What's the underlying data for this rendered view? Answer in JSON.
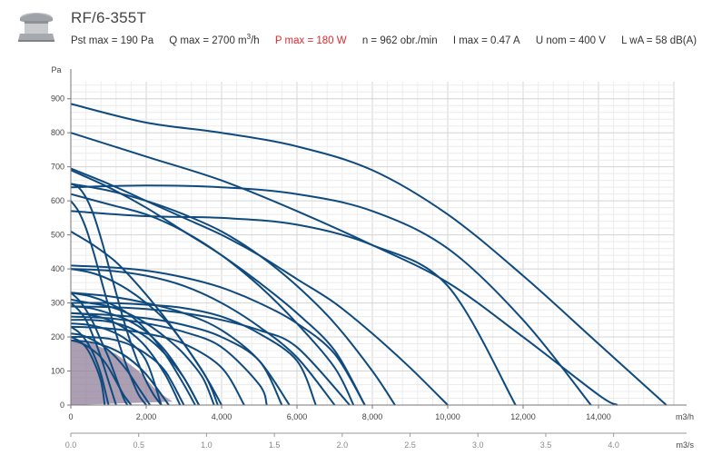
{
  "header": {
    "title": "RF/6-355T",
    "specs": {
      "pst": "Pst max = 190 Pa",
      "q_prefix": "Q max = 2700 m",
      "q_sup": "3",
      "q_suffix": "/h",
      "p": "P max = 180 W",
      "n": "n = 962 obr./min",
      "i": "I max = 0.47 A",
      "u": "U nom = 400 V",
      "lwa": "L wA = 58 dB(A)"
    },
    "colors": {
      "highlight": "#e0282d",
      "curve": "#0f4a7e",
      "area": "#8e7a95"
    }
  },
  "chart_data": {
    "type": "line",
    "ylabel": "Pa",
    "xlabel": "m3/h",
    "x2label": "m3/s",
    "ylim": [
      0,
      950
    ],
    "xlim": [
      0,
      16000
    ],
    "x2lim": [
      0,
      4.444
    ],
    "yticks": [
      0,
      100,
      200,
      300,
      400,
      500,
      600,
      700,
      800,
      900
    ],
    "xticks": [
      0,
      2000,
      4000,
      6000,
      8000,
      10000,
      12000,
      14000
    ],
    "xtick_labels": [
      "0",
      "2,000",
      "4,000",
      "6,000",
      "8,000",
      "10,000",
      "12,000",
      "14,000"
    ],
    "x2ticks": [
      0,
      0.5,
      1,
      1.5,
      2,
      2.5,
      3,
      3.5,
      4
    ],
    "x2tick_labels": [
      "0.0",
      "0.5",
      "1.0",
      "1.5",
      "2.0",
      "2.5",
      "3.0",
      "3.5",
      "4.0"
    ],
    "grid": true,
    "highlighted_area": {
      "x": [
        0,
        600,
        1200,
        1800,
        2300,
        2700,
        0
      ],
      "y": [
        190,
        180,
        150,
        100,
        40,
        10,
        0
      ]
    },
    "series": [
      {
        "x": [
          0,
          2000,
          4000,
          6000,
          8000,
          10000,
          12000,
          14000,
          15800
        ],
        "y": [
          885,
          830,
          800,
          760,
          690,
          560,
          380,
          180,
          0
        ]
      },
      {
        "x": [
          0,
          2000,
          4000,
          6000,
          8000,
          10000,
          12000,
          14000,
          14500
        ],
        "y": [
          800,
          730,
          660,
          570,
          470,
          360,
          200,
          30,
          0
        ]
      },
      {
        "x": [
          0,
          2000,
          4000,
          6000,
          8000,
          10000,
          12000,
          13800
        ],
        "y": [
          640,
          645,
          640,
          620,
          570,
          460,
          250,
          0
        ]
      },
      {
        "x": [
          0,
          2000,
          4000,
          6000,
          8000,
          10000,
          11800
        ],
        "y": [
          570,
          555,
          550,
          530,
          470,
          350,
          0
        ]
      },
      {
        "x": [
          0,
          1000,
          2000,
          3000,
          4000,
          5000,
          6000,
          7000,
          8000,
          9000,
          10000
        ],
        "y": [
          695,
          650,
          600,
          550,
          500,
          440,
          370,
          300,
          210,
          110,
          0
        ]
      },
      {
        "x": [
          0,
          1000,
          2000,
          3000,
          4000,
          5000,
          6000,
          7000,
          8000,
          8600
        ],
        "y": [
          650,
          630,
          600,
          560,
          510,
          440,
          350,
          240,
          100,
          0
        ]
      },
      {
        "x": [
          0,
          1000,
          2000,
          3000,
          4000,
          5000,
          6000,
          7000,
          7800
        ],
        "y": [
          690,
          640,
          580,
          510,
          440,
          360,
          270,
          160,
          0
        ]
      },
      {
        "x": [
          0,
          1000,
          2000,
          3000,
          4000,
          5000,
          6000,
          7000,
          7500
        ],
        "y": [
          620,
          590,
          560,
          510,
          440,
          350,
          240,
          110,
          0
        ]
      },
      {
        "x": [
          0,
          1000,
          2000,
          3000,
          4000,
          5000,
          6000,
          7000,
          7800
        ],
        "y": [
          410,
          405,
          395,
          375,
          345,
          300,
          240,
          150,
          0
        ]
      },
      {
        "x": [
          0,
          1000,
          2000,
          3000,
          4000,
          5000,
          6000,
          7000
        ],
        "y": [
          400,
          395,
          380,
          350,
          300,
          230,
          140,
          0
        ]
      },
      {
        "x": [
          0,
          1000,
          2000,
          3000,
          4000,
          5000,
          6000,
          6500
        ],
        "y": [
          300,
          300,
          295,
          285,
          260,
          210,
          130,
          0
        ]
      },
      {
        "x": [
          0,
          1000,
          2000,
          3000,
          4000,
          5000,
          6000,
          7400
        ],
        "y": [
          290,
          288,
          282,
          270,
          250,
          220,
          170,
          0
        ]
      },
      {
        "x": [
          0,
          1000,
          2000,
          3000,
          4000,
          5000,
          5800
        ],
        "y": [
          330,
          320,
          300,
          270,
          220,
          130,
          0
        ]
      },
      {
        "x": [
          0,
          1000,
          2000,
          3000,
          4000,
          5000,
          5600
        ],
        "y": [
          270,
          265,
          255,
          235,
          200,
          130,
          0
        ]
      },
      {
        "x": [
          0,
          1000,
          2000,
          3000,
          4000,
          5000,
          5200
        ],
        "y": [
          260,
          255,
          240,
          215,
          170,
          60,
          0
        ]
      },
      {
        "x": [
          0,
          1000,
          2000,
          3000,
          4000,
          4600
        ],
        "y": [
          230,
          225,
          210,
          180,
          110,
          0
        ]
      },
      {
        "x": [
          0,
          600,
          1200,
          1800,
          2400,
          3000,
          3600,
          4000
        ],
        "y": [
          510,
          470,
          420,
          350,
          270,
          180,
          80,
          0
        ]
      },
      {
        "x": [
          0,
          500,
          1000,
          1500,
          2000,
          2500,
          3000,
          3600,
          3900
        ],
        "y": [
          400,
          390,
          370,
          340,
          300,
          250,
          180,
          80,
          0
        ]
      },
      {
        "x": [
          0,
          500,
          1000,
          1500,
          2000,
          2500,
          3000,
          3500,
          3800
        ],
        "y": [
          310,
          300,
          290,
          270,
          240,
          200,
          150,
          80,
          0
        ]
      },
      {
        "x": [
          0,
          500,
          1000,
          1500,
          2000,
          2500,
          3000,
          3400
        ],
        "y": [
          250,
          250,
          245,
          230,
          200,
          150,
          80,
          0
        ]
      },
      {
        "x": [
          0,
          500,
          1000,
          1500,
          2000,
          2500,
          3000,
          3400
        ],
        "y": [
          290,
          285,
          270,
          250,
          215,
          160,
          80,
          0
        ]
      },
      {
        "x": [
          0,
          500,
          1000,
          1500,
          2000,
          2500,
          3000,
          3300
        ],
        "y": [
          330,
          320,
          300,
          270,
          220,
          150,
          60,
          0
        ]
      },
      {
        "x": [
          0,
          500,
          1000,
          1500,
          2000,
          2500,
          2900
        ],
        "y": [
          270,
          265,
          250,
          220,
          170,
          90,
          0
        ]
      },
      {
        "x": [
          0,
          500,
          1000,
          1500,
          2000,
          2500,
          3000
        ],
        "y": [
          200,
          200,
          195,
          180,
          150,
          100,
          0
        ]
      },
      {
        "x": [
          0,
          500,
          1000,
          1500,
          2000,
          2400
        ],
        "y": [
          240,
          235,
          220,
          190,
          130,
          0
        ]
      },
      {
        "x": [
          0,
          300,
          600,
          900,
          1200,
          1500,
          1800,
          2100
        ],
        "y": [
          210,
          205,
          190,
          170,
          140,
          100,
          50,
          0
        ]
      },
      {
        "x": [
          0,
          200,
          400,
          600,
          800,
          1000,
          1200,
          1400,
          1600
        ],
        "y": [
          190,
          185,
          175,
          160,
          140,
          110,
          70,
          30,
          0
        ]
      },
      {
        "x": [
          0,
          500,
          1000,
          1500,
          2000,
          2600
        ],
        "y": [
          190,
          185,
          170,
          140,
          90,
          0
        ]
      },
      {
        "x": [
          0,
          200,
          400,
          600,
          800,
          1000,
          1200,
          1400,
          1600,
          1800,
          2000,
          2200,
          2400
        ],
        "y": [
          650,
          640,
          610,
          560,
          490,
          410,
          330,
          250,
          180,
          120,
          70,
          30,
          0
        ]
      },
      {
        "x": [
          0,
          200,
          400,
          600,
          800,
          1000,
          1200,
          1400,
          1600,
          1800,
          2000
        ],
        "y": [
          600,
          570,
          520,
          450,
          370,
          290,
          210,
          140,
          80,
          30,
          0
        ]
      },
      {
        "x": [
          0,
          200,
          400,
          600,
          800,
          1000,
          1200,
          1400,
          1500
        ],
        "y": [
          330,
          310,
          280,
          240,
          190,
          140,
          80,
          20,
          0
        ]
      },
      {
        "x": [
          0,
          200,
          400,
          600,
          800,
          1000,
          1200
        ],
        "y": [
          300,
          280,
          250,
          200,
          140,
          70,
          0
        ]
      },
      {
        "x": [
          0,
          200,
          400,
          600,
          800,
          1000
        ],
        "y": [
          230,
          215,
          190,
          150,
          90,
          0
        ]
      },
      {
        "x": [
          0,
          200,
          400,
          600,
          800,
          900
        ],
        "y": [
          200,
          190,
          170,
          130,
          70,
          0
        ]
      }
    ]
  }
}
